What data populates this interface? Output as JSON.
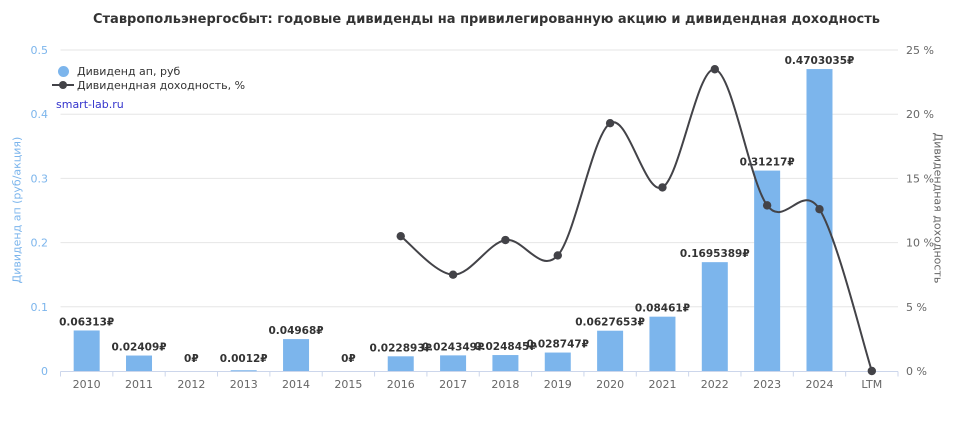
{
  "title": "Ставропольэнергосбыт: годовые дивиденды на привилегированную акцию и дивидендная доходность",
  "watermark": "smart-lab.ru",
  "legend": [
    {
      "label": "Дивиденд ап, руб",
      "marker": "circle-icon"
    },
    {
      "label": "Дивидендная доходность, %",
      "marker": "line-dot-icon"
    }
  ],
  "colors": {
    "bar": "#7cb5ec",
    "line": "#434348",
    "grid": "#e6e6e6",
    "axis": "#ccd6eb",
    "left_label": "#7cb5ec",
    "right_label": "#666666",
    "bar_label": "#333333",
    "category_label": "#666666",
    "title": "#333333",
    "watermark": "#3333cc"
  },
  "chart_data": {
    "type": "bar",
    "title": "Ставропольэнергосбыт: годовые дивиденды на привилегированную акцию и дивидендная доходность",
    "categories": [
      "2010",
      "2011",
      "2012",
      "2013",
      "2014",
      "2015",
      "2016",
      "2017",
      "2018",
      "2019",
      "2020",
      "2021",
      "2022",
      "2023",
      "2024",
      "LTM"
    ],
    "series": [
      {
        "name": "Дивиденд ап, руб",
        "type": "bar",
        "axis": "left",
        "values": [
          0.06313,
          0.02409,
          0,
          0.0012,
          0.04968,
          0,
          0.022893,
          0.024349,
          0.024845,
          0.028747,
          0.0627653,
          0.08461,
          0.1695389,
          0.31217,
          0.4703035,
          null
        ],
        "labels": [
          "0.06313₽",
          "0.02409₽",
          "0₽",
          "0.0012₽",
          "0.04968₽",
          "0₽",
          "0.022893₽",
          "0.024349₽",
          "0.024845₽",
          "0.028747₽",
          "0.0627653₽",
          "0.08461₽",
          "0.1695389₽",
          "0.31217₽",
          "0.4703035₽",
          null
        ]
      },
      {
        "name": "Дивидендная доходность, %",
        "type": "line",
        "axis": "right",
        "values": [
          null,
          null,
          null,
          null,
          null,
          null,
          10.5,
          7.5,
          10.2,
          9.0,
          19.3,
          14.3,
          23.5,
          12.9,
          12.6,
          0
        ]
      }
    ],
    "left_axis": {
      "title": "Дивиденд ап (руб/акция)",
      "min": 0,
      "max": 0.5,
      "ticks": [
        0,
        0.1,
        0.2,
        0.3,
        0.4,
        0.5
      ],
      "tick_labels": [
        "0",
        "0.1",
        "0.2",
        "0.3",
        "0.4",
        "0.5"
      ]
    },
    "right_axis": {
      "title": "Дивидендная доходность",
      "min": 0,
      "max": 25,
      "ticks": [
        0,
        5,
        10,
        15,
        20,
        25
      ],
      "tick_labels": [
        "0 %",
        "5 %",
        "10 %",
        "15 %",
        "20 %",
        "25 %"
      ]
    },
    "grid": true,
    "legend_position": "top-left"
  }
}
